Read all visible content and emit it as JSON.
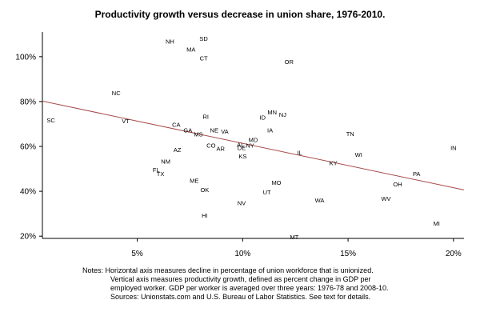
{
  "chart_data": {
    "type": "scatter",
    "title": "Productivity growth versus decrease in union share, 1976-2010.",
    "xlabel": "",
    "ylabel": "",
    "xlim": [
      0.5,
      20.5
    ],
    "ylim": [
      19,
      111
    ],
    "x_ticks": [
      {
        "value": 5,
        "label": "5%"
      },
      {
        "value": 10,
        "label": "10%"
      },
      {
        "value": 15,
        "label": "15%"
      },
      {
        "value": 20,
        "label": "20%"
      }
    ],
    "y_ticks": [
      {
        "value": 20,
        "label": "20%"
      },
      {
        "value": 40,
        "label": "40%"
      },
      {
        "value": 60,
        "label": "60%"
      },
      {
        "value": 80,
        "label": "80%"
      },
      {
        "value": 100,
        "label": "100%"
      }
    ],
    "grid": false,
    "trendline": {
      "x": [
        0.5,
        20.5
      ],
      "y": [
        80.2,
        40.6
      ],
      "color": "#a84a4a"
    },
    "points": [
      {
        "label": "NH",
        "x": 6.55,
        "y": 106.9
      },
      {
        "label": "SD",
        "x": 8.15,
        "y": 108.2
      },
      {
        "label": "MA",
        "x": 7.55,
        "y": 103.3
      },
      {
        "label": "CT",
        "x": 8.15,
        "y": 99.4
      },
      {
        "label": "OR",
        "x": 12.2,
        "y": 97.8
      },
      {
        "label": "NC",
        "x": 4.0,
        "y": 83.9
      },
      {
        "label": "SC",
        "x": 0.9,
        "y": 71.8
      },
      {
        "label": "VT",
        "x": 4.45,
        "y": 71.4
      },
      {
        "label": "CA",
        "x": 6.85,
        "y": 69.9
      },
      {
        "label": "RI",
        "x": 8.25,
        "y": 73.4
      },
      {
        "label": "MN",
        "x": 11.4,
        "y": 75.3
      },
      {
        "label": "NJ",
        "x": 11.9,
        "y": 74.2
      },
      {
        "label": "ID",
        "x": 10.95,
        "y": 73.1
      },
      {
        "label": "IA",
        "x": 11.3,
        "y": 67.3
      },
      {
        "label": "TN",
        "x": 15.1,
        "y": 65.8
      },
      {
        "label": "IN",
        "x": 20.0,
        "y": 59.5
      },
      {
        "label": "GA",
        "x": 7.4,
        "y": 67.3
      },
      {
        "label": "MS",
        "x": 7.9,
        "y": 65.6
      },
      {
        "label": "NE",
        "x": 8.65,
        "y": 67.3
      },
      {
        "label": "VA",
        "x": 9.15,
        "y": 66.8
      },
      {
        "label": "MD",
        "x": 10.5,
        "y": 63.1
      },
      {
        "label": "AL",
        "x": 9.9,
        "y": 60.9
      },
      {
        "label": "NY",
        "x": 10.35,
        "y": 60.6
      },
      {
        "label": "DE",
        "x": 9.95,
        "y": 59.4
      },
      {
        "label": "CO",
        "x": 8.5,
        "y": 60.6
      },
      {
        "label": "AR",
        "x": 8.95,
        "y": 59.2
      },
      {
        "label": "AZ",
        "x": 6.9,
        "y": 58.6
      },
      {
        "label": "KS",
        "x": 10.0,
        "y": 55.7
      },
      {
        "label": "IL",
        "x": 12.7,
        "y": 57.3
      },
      {
        "label": "WI",
        "x": 15.5,
        "y": 56.5
      },
      {
        "label": "KY",
        "x": 14.3,
        "y": 52.7
      },
      {
        "label": "NM",
        "x": 6.35,
        "y": 53.5
      },
      {
        "label": "FL",
        "x": 5.9,
        "y": 49.6
      },
      {
        "label": "TX",
        "x": 6.1,
        "y": 47.8
      },
      {
        "label": "PA",
        "x": 18.25,
        "y": 47.8
      },
      {
        "label": "ME",
        "x": 7.7,
        "y": 44.8
      },
      {
        "label": "MO",
        "x": 11.6,
        "y": 43.9
      },
      {
        "label": "OH",
        "x": 17.35,
        "y": 43.3
      },
      {
        "label": "OK",
        "x": 8.2,
        "y": 40.7
      },
      {
        "label": "UT",
        "x": 11.15,
        "y": 39.7
      },
      {
        "label": "WV",
        "x": 16.8,
        "y": 36.9
      },
      {
        "label": "NV",
        "x": 9.95,
        "y": 34.9
      },
      {
        "label": "WA",
        "x": 13.65,
        "y": 36.1
      },
      {
        "label": "HI",
        "x": 8.2,
        "y": 29.4
      },
      {
        "label": "MI",
        "x": 19.2,
        "y": 25.7
      },
      {
        "label": "MT",
        "x": 12.45,
        "y": 19.8
      }
    ]
  },
  "notes": {
    "line1": "Notes: Horizontal axis measures decline in percentage of union workforce that is unionized.",
    "line2": "Vertical axis measures productivity growth, defined as percent change in GDP per",
    "line3": "employed worker. GDP per worker is averaged over three years: 1976-78 and 2008-10.",
    "line4": "Sources: Unionstats.com and U.S. Bureau of Labor Statistics. See text for details."
  }
}
